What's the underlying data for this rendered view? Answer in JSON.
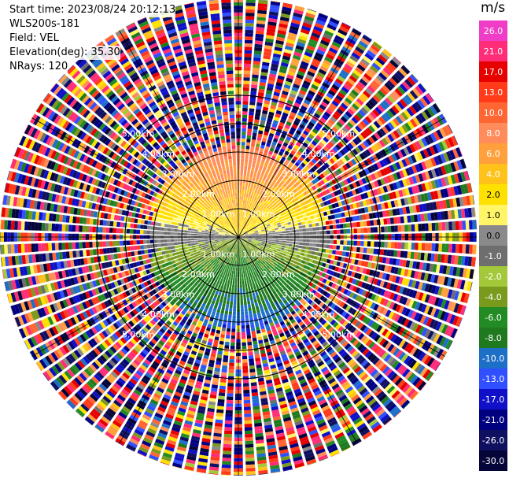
{
  "header": {
    "start_time": "Start time: 2023/08/24 20:12:13",
    "instrument": "WLS200s-181",
    "field": "Field: VEL",
    "elevation": "Elevation(deg): 35.30",
    "nrays": "NRays: 120"
  },
  "colorbar": {
    "unit": "m/s",
    "ticks": [
      "26.0",
      "21.0",
      "17.0",
      "13.0",
      "10.0",
      "8.0",
      "6.0",
      "4.0",
      "2.0",
      "1.0",
      "0.0",
      "-1.0",
      "-2.0",
      "-4.0",
      "-6.0",
      "-8.0",
      "-10.0",
      "-13.0",
      "-17.0",
      "-21.0",
      "-26.0",
      "-30.0"
    ],
    "colors": [
      "#f03dc8",
      "#ff2d78",
      "#e60000",
      "#ff3b1a",
      "#ff6633",
      "#ff8c5a",
      "#ffa03c",
      "#ffc21a",
      "#ffe100",
      "#fff566",
      "#8a8a8a",
      "#6e6e6e",
      "#a3c93a",
      "#7a9a1e",
      "#238b23",
      "#1f7a1f",
      "#1e6fc8",
      "#3050ff",
      "#1010c8",
      "#000080",
      "#101060",
      "#05053a"
    ]
  },
  "chart_data": {
    "type": "heatmap",
    "projection": "polar PPI",
    "field": "VEL",
    "unit": "m/s",
    "nrays": 120,
    "elevation_deg": 35.3,
    "range_rings_km": [
      1.0,
      2.0,
      3.0,
      4.0,
      5.0
    ],
    "ring_labels": [
      "1.00km",
      "2.00km",
      "3.00km",
      "4.00km",
      "5.00km"
    ],
    "color_scale_min": -30.0,
    "color_scale_max": 26.0,
    "structure": "near range: positive velocities (yellow/orange) toward north, negative (green) toward south, gray zero band along east-west axis; far range: noisy multicolour returns"
  }
}
